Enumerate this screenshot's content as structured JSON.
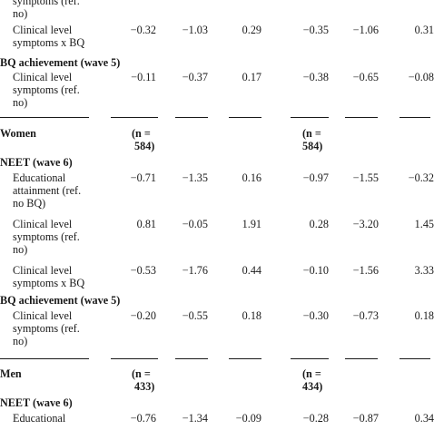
{
  "top": {
    "frag1": "symptoms (ref.",
    "frag2": "no)",
    "label1": "Clinical level",
    "label2": "symptoms x BQ",
    "values": [
      "−0.32",
      "−1.03",
      "0.29",
      "−0.35",
      "−1.06",
      "0.31"
    ]
  },
  "bq_top": {
    "heading": "BQ achievement (wave 5)",
    "label1": "Clinical level",
    "label2": "symptoms (ref.",
    "label3": "no)",
    "values": [
      "−0.11",
      "−0.37",
      "0.17",
      "−0.38",
      "−0.65",
      "−0.08"
    ]
  },
  "women": {
    "label": "Women",
    "n_left_1": "(n =",
    "n_left_2": "584)",
    "n_right_1": "(n =",
    "n_right_2": "584)",
    "neet_heading": "NEET (wave 6)",
    "rows": [
      {
        "lines": [
          "Educational",
          "attainment (ref.",
          "no BQ)"
        ],
        "values": [
          "−0.71",
          "−1.35",
          "0.16",
          "−0.97",
          "−1.55",
          "−0.32"
        ]
      },
      {
        "lines": [
          "Clinical level",
          "symptoms (ref.",
          "no)"
        ],
        "values": [
          "0.81",
          "−0.05",
          "1.91",
          "0.28",
          "−3.20",
          "1.45"
        ]
      },
      {
        "lines": [
          "Clinical level",
          "symptoms x BQ"
        ],
        "values": [
          "−0.53",
          "−1.76",
          "0.44",
          "−0.10",
          "−1.56",
          "3.33"
        ]
      }
    ],
    "bq_heading": "BQ achievement (wave 5)",
    "bq_row": {
      "lines": [
        "Clinical level",
        "symptoms (ref.",
        "no)"
      ],
      "values": [
        "−0.20",
        "−0.55",
        "0.18",
        "−0.30",
        "−0.73",
        "0.18"
      ]
    }
  },
  "men": {
    "label": "Men",
    "n_left_1": "(n =",
    "n_left_2": "433)",
    "n_right_1": "(n =",
    "n_right_2": "434)",
    "neet_heading": "NEET (wave 6)",
    "row": {
      "line1": "Educational",
      "values": [
        "−0.76",
        "−1.34",
        "−0.09",
        "−0.28",
        "−0.87",
        "0.34"
      ]
    }
  }
}
